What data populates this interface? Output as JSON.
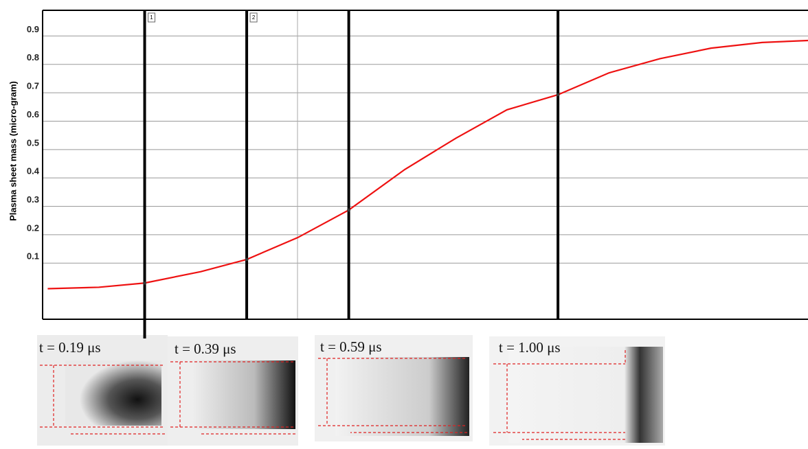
{
  "chart_data": {
    "type": "line",
    "y_label": "Plasma sheet mass (micro-gram)",
    "x": [
      0,
      0.1,
      0.19,
      0.3,
      0.39,
      0.49,
      0.59,
      0.7,
      0.8,
      0.9,
      1.0,
      1.1,
      1.2,
      1.3,
      1.4,
      1.49
    ],
    "series": [
      {
        "color": "#ee1111",
        "values": [
          0.01,
          0.015,
          0.03,
          0.07,
          0.113,
          0.19,
          0.287,
          0.43,
          0.54,
          0.64,
          0.693,
          0.77,
          0.82,
          0.857,
          0.877,
          0.884
        ]
      }
    ],
    "xlim": [
      -0.01,
      1.49
    ],
    "ylim": [
      -0.1,
      1.0
    ],
    "yticks": [
      0.1,
      0.2,
      0.3,
      0.4,
      0.5,
      0.6,
      0.7,
      0.8,
      0.9
    ],
    "grid": true,
    "markers": [
      {
        "x": 0.19,
        "tag": "1",
        "caption": "t = 0.19 μs"
      },
      {
        "x": 0.39,
        "tag": "2",
        "caption": "t = 0.39 μs"
      },
      {
        "x": 0.59,
        "caption": "t = 0.59 μs"
      },
      {
        "x": 1.0,
        "caption": "t = 1.00 μs"
      }
    ]
  }
}
